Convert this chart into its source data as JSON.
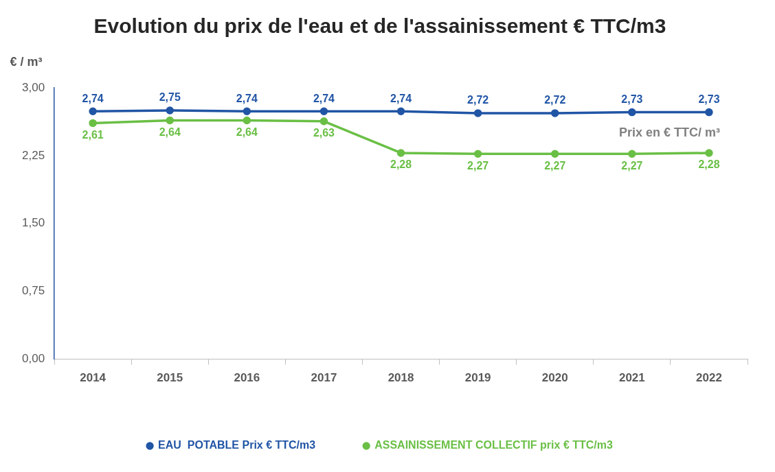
{
  "chart_data": {
    "type": "line",
    "title": "Evolution du prix de l'eau et de l'assainissement € TTC/m3",
    "ylabel": "€ / m³",
    "categories": [
      "2014",
      "2015",
      "2016",
      "2017",
      "2018",
      "2019",
      "2020",
      "2021",
      "2022"
    ],
    "series": [
      {
        "name": "EAU  POTABLE Prix € TTC/m3",
        "color": "#2155a5",
        "values": [
          2.74,
          2.75,
          2.74,
          2.74,
          2.74,
          2.72,
          2.72,
          2.73,
          2.73
        ],
        "value_labels": [
          "2,74",
          "2,75",
          "2,74",
          "2,74",
          "2,74",
          "2,72",
          "2,72",
          "2,73",
          "2,73"
        ]
      },
      {
        "name": "ASSAINISSEMENT COLLECTIF prix € TTC/m3",
        "color": "#6abf45",
        "values": [
          2.61,
          2.64,
          2.64,
          2.63,
          2.28,
          2.27,
          2.27,
          2.27,
          2.28
        ],
        "value_labels": [
          "2,61",
          "2,64",
          "2,64",
          "2,63",
          "2,28",
          "2,27",
          "2,27",
          "2,27",
          "2,28"
        ]
      }
    ],
    "ylim": [
      0,
      3
    ],
    "yticks": [
      {
        "value": 0,
        "label": "0,00"
      },
      {
        "value": 0.75,
        "label": "0,75"
      },
      {
        "value": 1.5,
        "label": "1,50"
      },
      {
        "value": 2.25,
        "label": "2,25"
      },
      {
        "value": 3,
        "label": "3,00"
      }
    ],
    "annotations": [
      "Prix en € TTC/ m³"
    ],
    "grid": false,
    "legend": "bottom",
    "marker": "circle",
    "line_style": "solid"
  }
}
